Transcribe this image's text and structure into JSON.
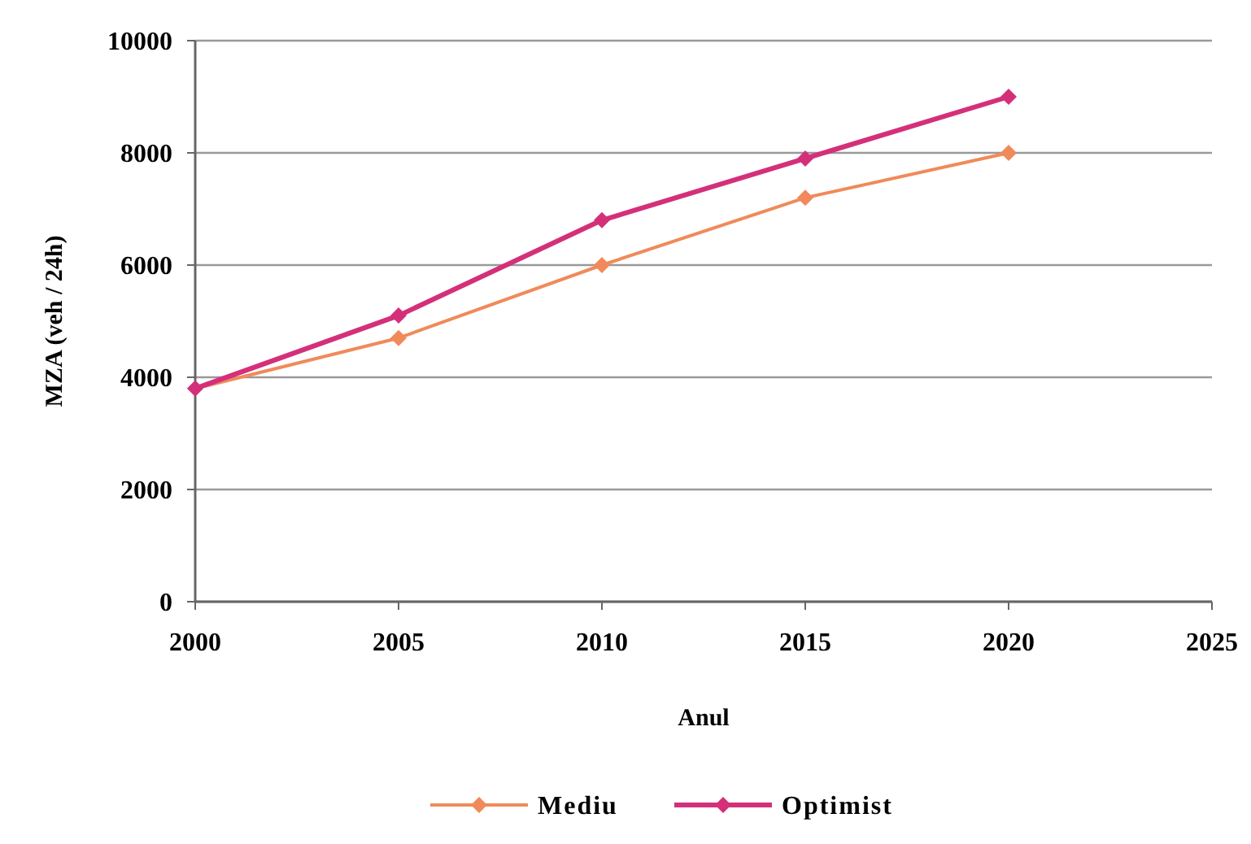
{
  "chart_data": {
    "type": "line",
    "xlabel": "Anul",
    "ylabel": "MZA (veh / 24h)",
    "x": [
      2000,
      2005,
      2010,
      2015,
      2020
    ],
    "series": [
      {
        "name": "Mediu",
        "color": "#f08a5a",
        "values": [
          3800,
          4700,
          6000,
          7200,
          8000
        ]
      },
      {
        "name": "Optimist",
        "color": "#d4307a",
        "values": [
          3800,
          5100,
          6800,
          7900,
          9000
        ]
      }
    ],
    "xlim": [
      2000,
      2025
    ],
    "xticks": [
      2000,
      2005,
      2010,
      2015,
      2020,
      2025
    ],
    "ylim": [
      0,
      10000
    ],
    "yticks": [
      0,
      2000,
      4000,
      6000,
      8000,
      10000
    ],
    "grid": "y",
    "legend": "bottom",
    "marker": "diamond",
    "line_style": "solid"
  }
}
